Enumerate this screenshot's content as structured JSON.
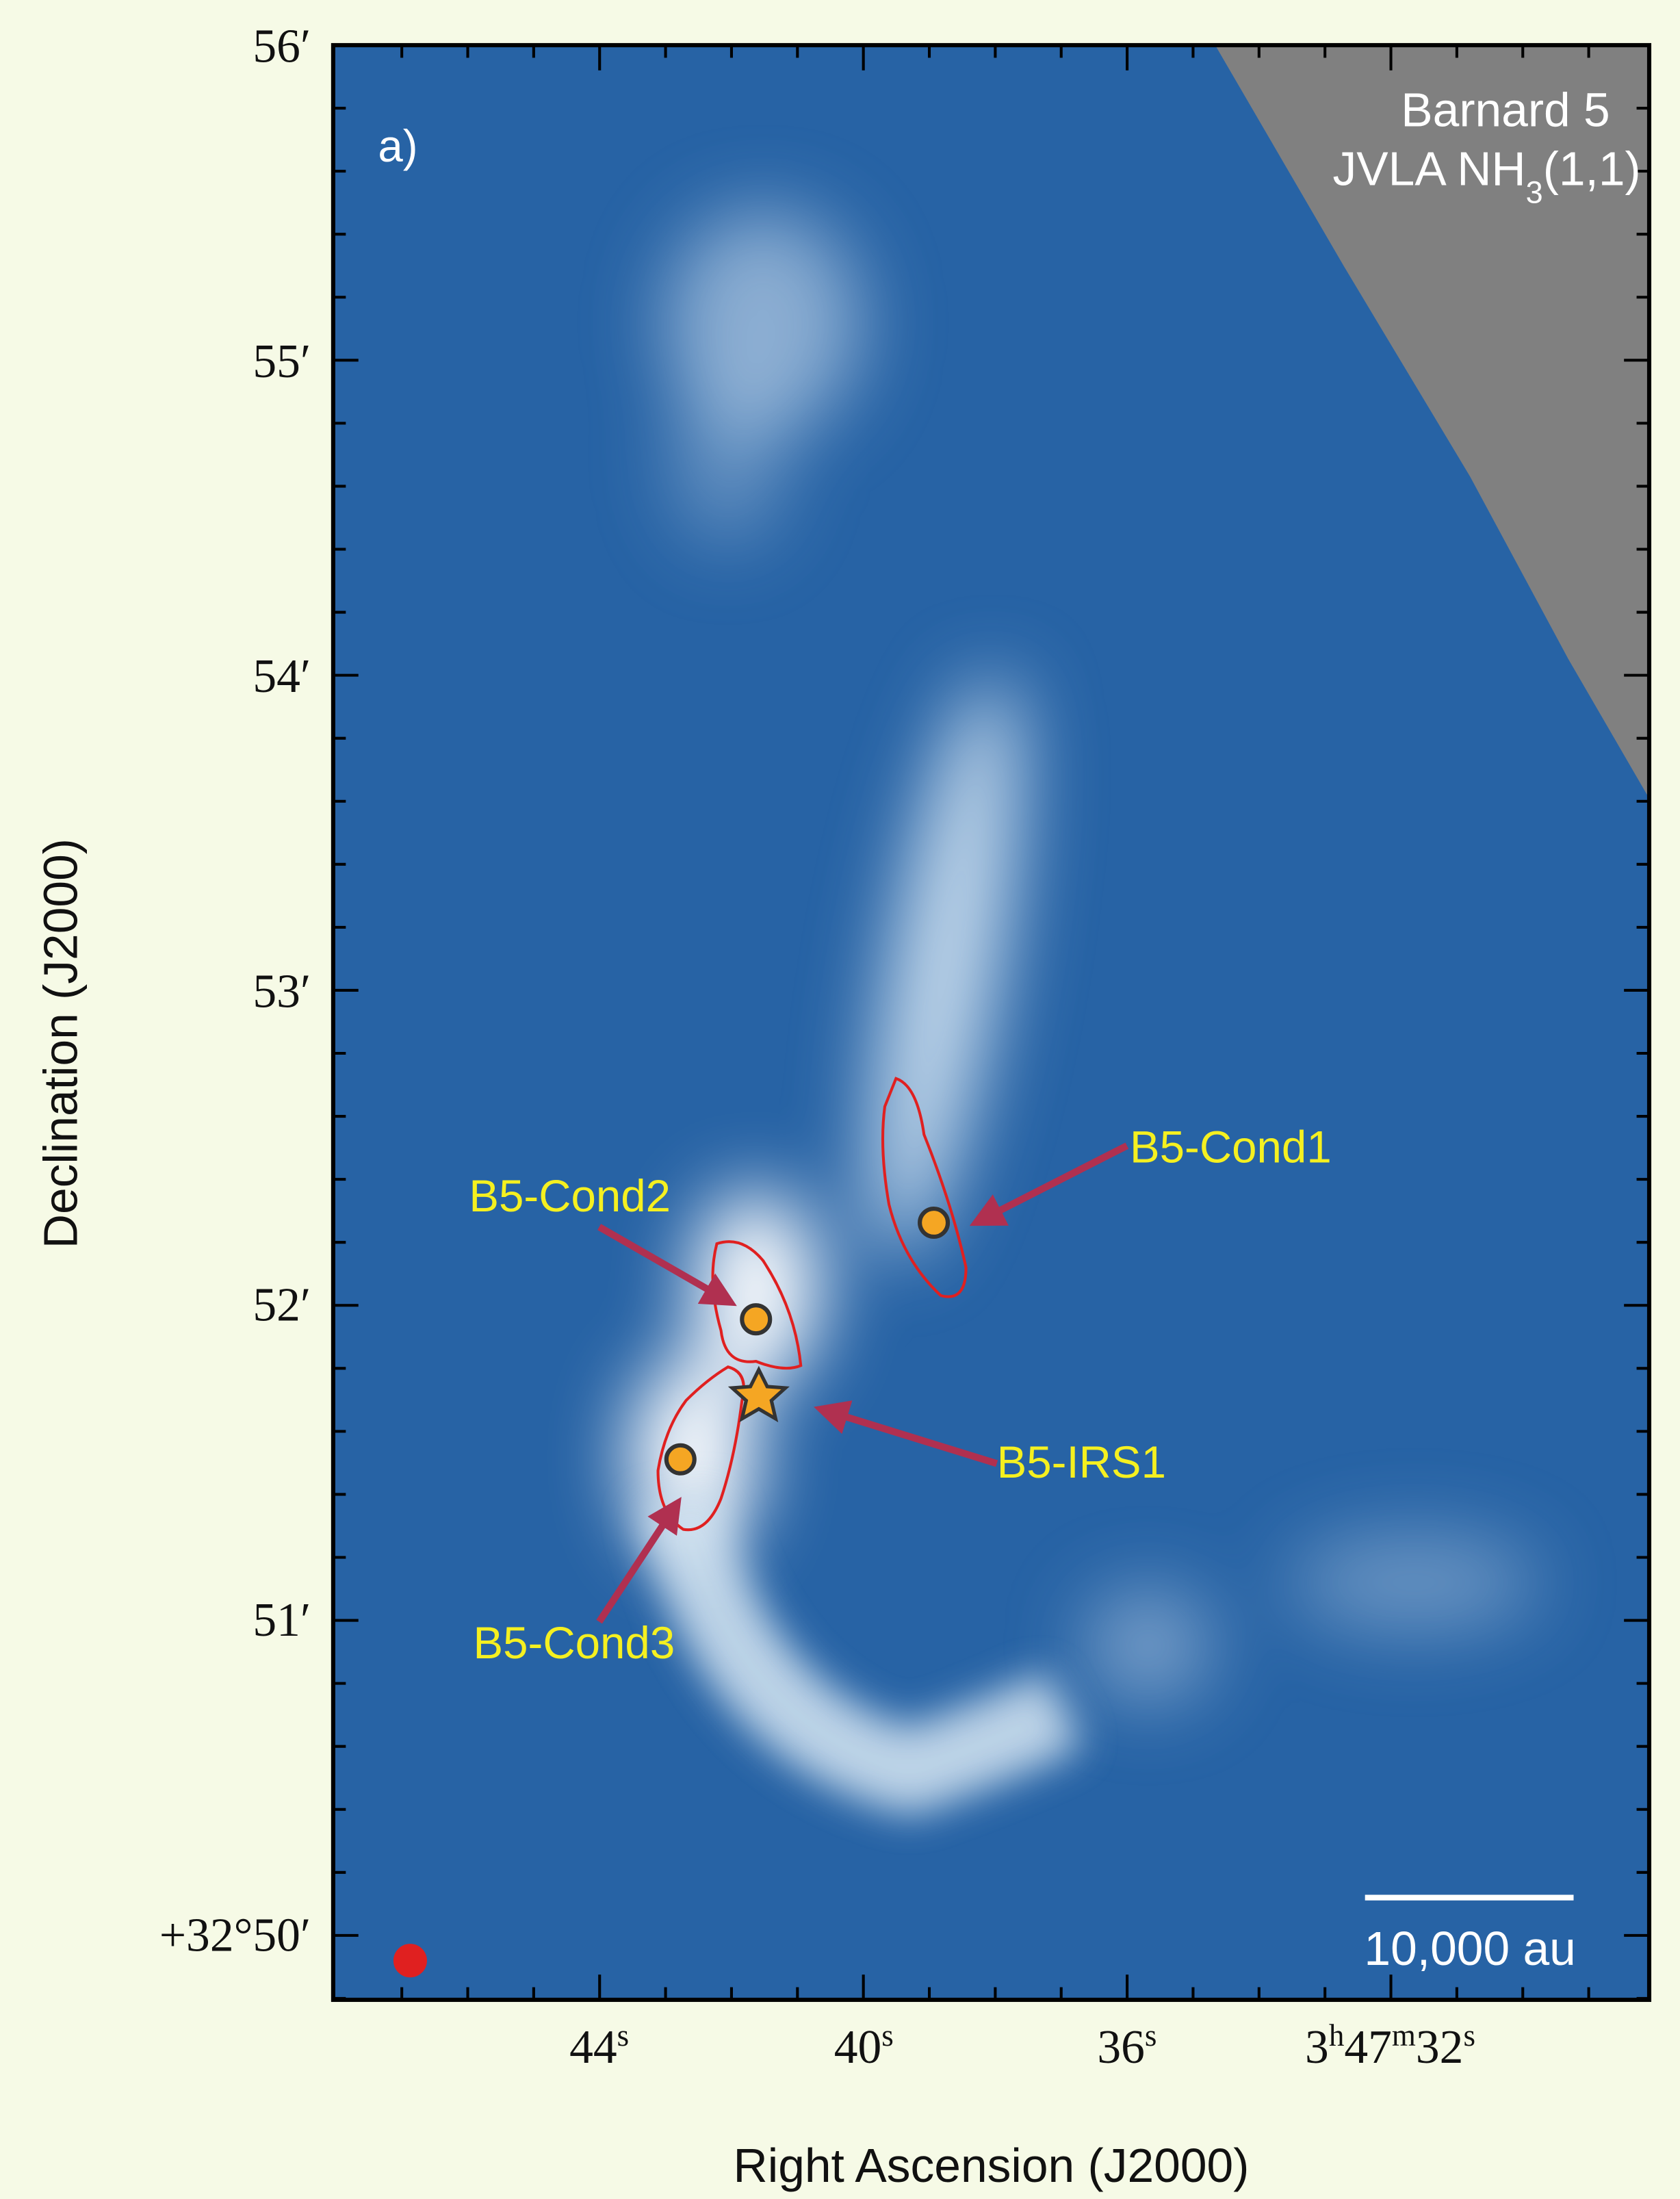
{
  "figure": {
    "panel_label": "a)",
    "title_lines": [
      [
        "Barnard 5"
      ],
      [
        "JVLA NH",
        "3",
        "(1,1)"
      ]
    ],
    "x_label": "Right Ascension (J2000)",
    "y_label": "Declination (J2000)",
    "x_ticks": [
      [
        "44",
        "s"
      ],
      [
        "40",
        "s"
      ],
      [
        "36",
        "s"
      ],
      [
        "3",
        "h",
        "47",
        "m",
        "32",
        "s"
      ]
    ],
    "y_ticks": [
      "56′",
      "55′",
      "54′",
      "53′",
      "52′",
      "51′",
      "+32°50′"
    ],
    "annotations": [
      "B5-Cond1",
      "B5-Cond2",
      "B5-IRS1",
      "B5-Cond3"
    ],
    "scale_bar_label": "10,000 au"
  }
}
